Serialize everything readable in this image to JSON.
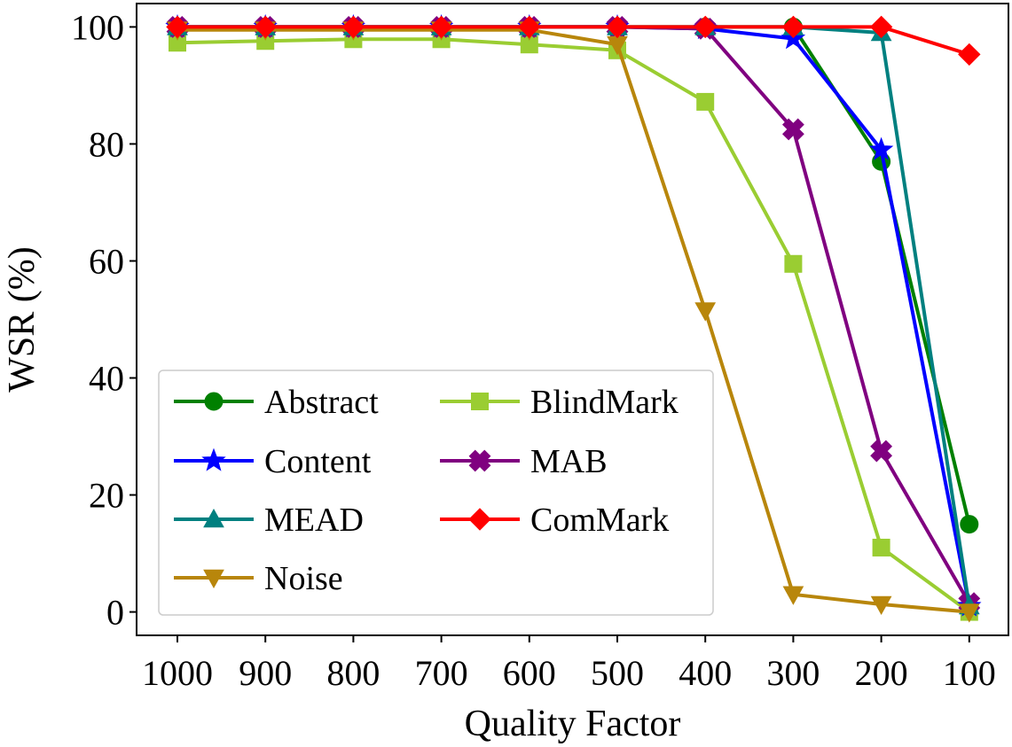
{
  "chart_data": {
    "type": "line",
    "xlabel": "Quality Factor",
    "ylabel": "WSR (%)",
    "categories": [
      "1000",
      "900",
      "800",
      "700",
      "600",
      "500",
      "400",
      "300",
      "200",
      "100"
    ],
    "ylim": [
      -4,
      104
    ],
    "yticks": [
      0,
      20,
      40,
      60,
      80,
      100
    ],
    "grid": false,
    "legend_position": "lower-left",
    "series": [
      {
        "name": "Abstract",
        "color": "#008000",
        "marker": "circle",
        "values": [
          100,
          100,
          100,
          100,
          100,
          100,
          100,
          100,
          77,
          15
        ]
      },
      {
        "name": "BlindMark",
        "color": "#9acd32",
        "marker": "square",
        "values": [
          97.3,
          97.6,
          97.9,
          97.9,
          97,
          96,
          87.2,
          59.5,
          11,
          0
        ]
      },
      {
        "name": "Content",
        "color": "#0000ff",
        "marker": "star",
        "values": [
          100,
          100,
          100,
          100,
          100,
          100,
          99.7,
          98,
          79,
          1
        ]
      },
      {
        "name": "MAB",
        "color": "#800080",
        "marker": "x",
        "values": [
          100,
          100,
          100,
          100,
          100,
          100,
          99.7,
          82.5,
          27.5,
          1.5
        ]
      },
      {
        "name": "MEAD",
        "color": "#008080",
        "marker": "triangle-up",
        "values": [
          100,
          100,
          100,
          100,
          100,
          100,
          100,
          100,
          99,
          1
        ]
      },
      {
        "name": "ComMark",
        "color": "#ff0000",
        "marker": "diamond",
        "values": [
          100,
          100,
          100,
          100,
          100,
          100,
          100,
          100,
          100,
          95.3
        ]
      },
      {
        "name": "Noise",
        "color": "#b8860b",
        "marker": "triangle-down",
        "values": [
          99.5,
          99.5,
          99.5,
          99.5,
          99.5,
          97,
          51.5,
          3,
          1.3,
          0
        ]
      }
    ],
    "draw_order": [
      "Abstract",
      "BlindMark",
      "Content",
      "MAB",
      "MEAD",
      "Noise",
      "ComMark"
    ],
    "legend_columns": [
      [
        "Abstract",
        "Content",
        "MEAD",
        "Noise"
      ],
      [
        "BlindMark",
        "MAB",
        "ComMark"
      ]
    ]
  }
}
